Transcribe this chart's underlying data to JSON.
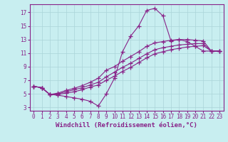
{
  "background_color": "#c8eef0",
  "grid_color": "#aad4d8",
  "line_color": "#882288",
  "marker": "+",
  "markersize": 4,
  "linewidth": 0.8,
  "xlabel": "Windchill (Refroidissement éolien,°C)",
  "xlabel_fontsize": 6.5,
  "ylabel_ticks": [
    3,
    5,
    7,
    9,
    11,
    13,
    15,
    17
  ],
  "xticks": [
    0,
    1,
    2,
    3,
    4,
    5,
    6,
    7,
    8,
    9,
    10,
    11,
    12,
    13,
    14,
    15,
    16,
    17,
    18,
    19,
    20,
    21,
    22,
    23
  ],
  "xlim": [
    -0.5,
    23.5
  ],
  "ylim": [
    2.5,
    18.2
  ],
  "tick_fontsize": 5.5,
  "lines": [
    [
      6.1,
      5.9,
      4.9,
      4.8,
      4.6,
      4.4,
      4.2,
      3.9,
      3.2,
      5.0,
      7.3,
      11.2,
      13.5,
      15.0,
      17.3,
      17.6,
      16.5,
      12.8,
      13.0,
      12.7,
      12.0,
      11.3,
      11.3,
      11.3
    ],
    [
      6.1,
      5.9,
      4.9,
      5.1,
      5.5,
      5.8,
      6.2,
      6.7,
      7.3,
      8.5,
      9.0,
      9.8,
      10.5,
      11.2,
      12.0,
      12.5,
      12.7,
      12.9,
      13.0,
      13.0,
      12.9,
      12.8,
      11.3,
      11.3
    ],
    [
      6.1,
      5.9,
      4.9,
      5.0,
      5.3,
      5.6,
      5.9,
      6.3,
      6.7,
      7.5,
      8.2,
      8.9,
      9.5,
      10.2,
      10.9,
      11.5,
      11.8,
      12.0,
      12.2,
      12.3,
      12.4,
      12.4,
      11.3,
      11.3
    ],
    [
      6.1,
      5.9,
      4.9,
      4.9,
      5.1,
      5.3,
      5.6,
      6.0,
      6.3,
      7.0,
      7.6,
      8.3,
      8.9,
      9.6,
      10.3,
      10.9,
      11.2,
      11.5,
      11.7,
      11.9,
      12.0,
      12.1,
      11.3,
      11.3
    ]
  ]
}
